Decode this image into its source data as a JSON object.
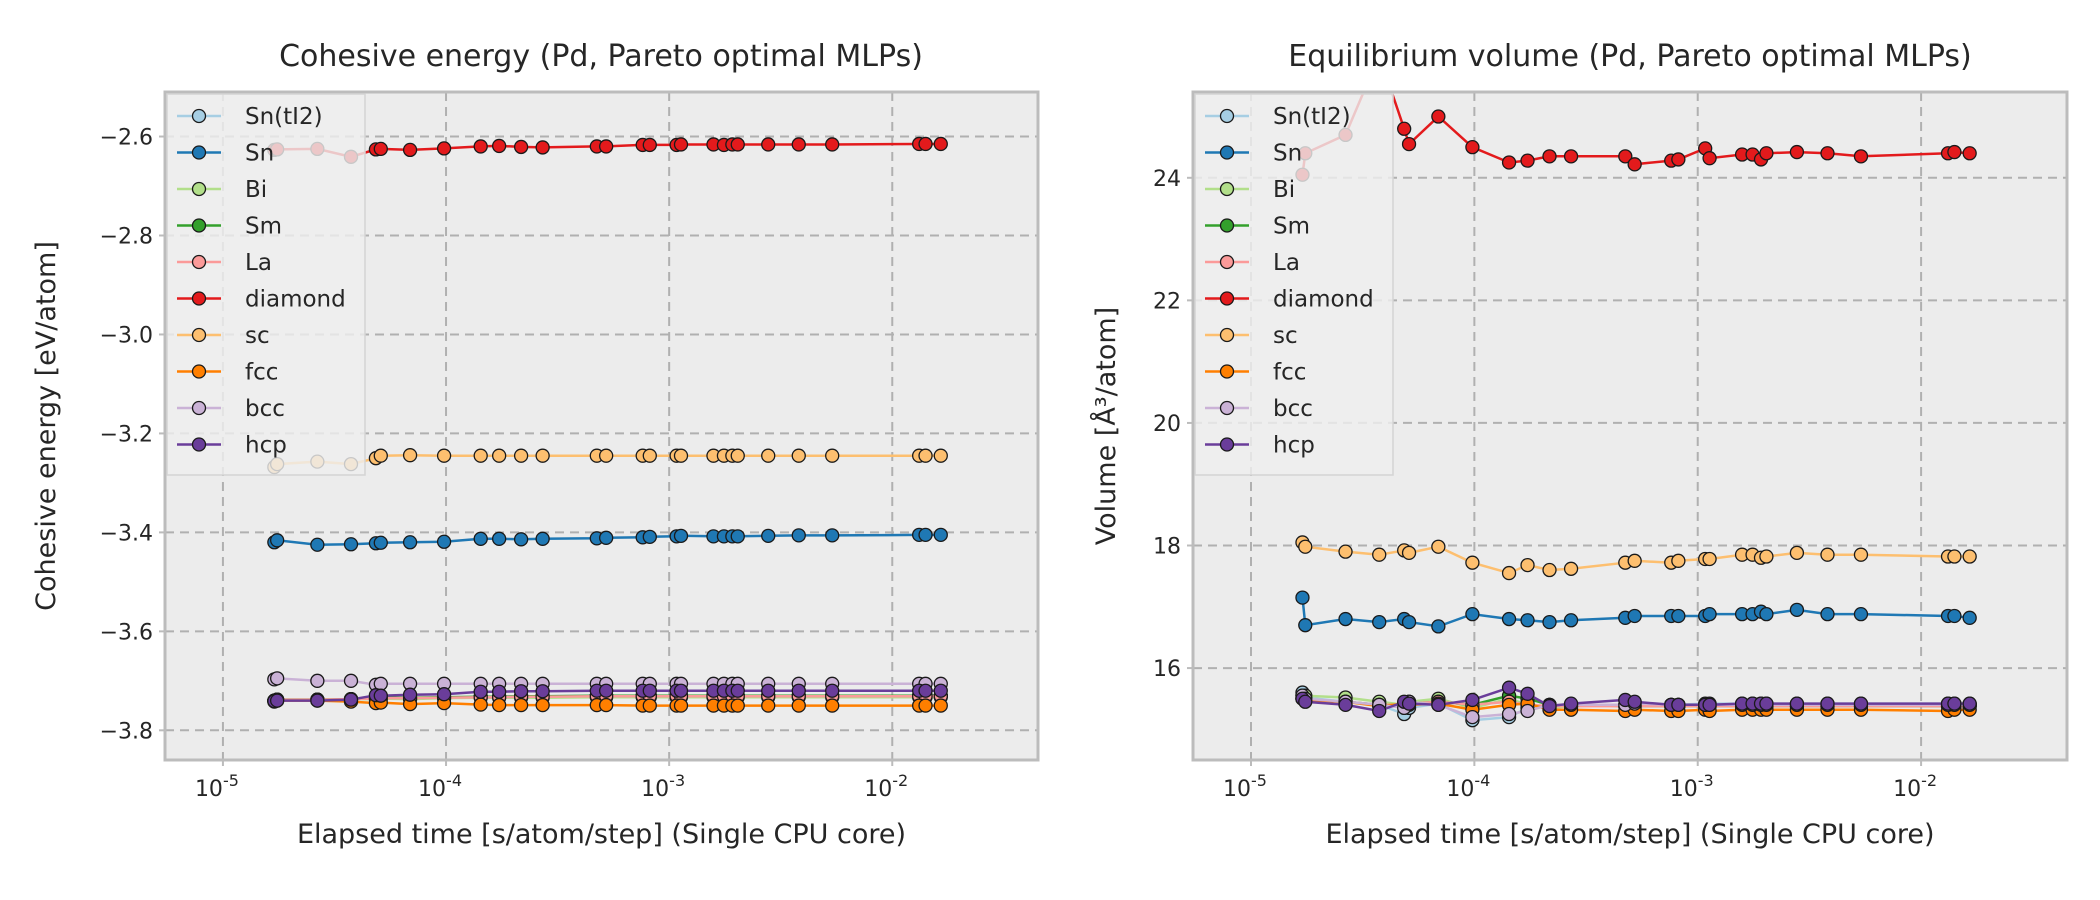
{
  "x_tick_labels": [
    {
      "base": "10",
      "exp": "-5",
      "value": 1e-05
    },
    {
      "base": "10",
      "exp": "-4",
      "value": 0.0001
    },
    {
      "base": "10",
      "exp": "-3",
      "value": 0.001
    },
    {
      "base": "10",
      "exp": "-2",
      "value": 0.01
    }
  ],
  "colors": {
    "axes_bg": "#ececec",
    "grid": "#b0b0b0",
    "spine": "#bcbcbc",
    "text": "#262626"
  },
  "series_style": [
    {
      "name": "Sn(tI2)",
      "color": "#a6cee3"
    },
    {
      "name": "Sn",
      "color": "#1f78b4"
    },
    {
      "name": "Bi",
      "color": "#b2df8a"
    },
    {
      "name": "Sm",
      "color": "#33a02c"
    },
    {
      "name": "La",
      "color": "#fb9a99"
    },
    {
      "name": "diamond",
      "color": "#e31a1c"
    },
    {
      "name": "sc",
      "color": "#fdbf6f"
    },
    {
      "name": "fcc",
      "color": "#ff7f00"
    },
    {
      "name": "bcc",
      "color": "#cab2d6"
    },
    {
      "name": "hcp",
      "color": "#6a3d9a"
    }
  ],
  "chart_data": [
    {
      "type": "line",
      "title": "Cohesive energy (Pd, Pareto optimal MLPs)",
      "xlabel": "Elapsed time [s/atom/step] (Single CPU core)",
      "ylabel": "Cohesive energy [eV/atom]",
      "xscale": "log",
      "xlim": [
        5.5e-06,
        0.045
      ],
      "ylim": [
        -3.86,
        -2.51
      ],
      "yticks": [
        -3.8,
        -3.6,
        -3.4,
        -3.2,
        -3.0,
        -2.8,
        -2.6
      ],
      "ytick_labels": [
        "−3.8",
        "−3.6",
        "−3.4",
        "−3.2",
        "−3.0",
        "−2.8",
        "−2.6"
      ],
      "grid": true,
      "legend_position": "top-left",
      "x": [
        1.7e-05,
        1.75e-05,
        2.65e-05,
        3.75e-05,
        4.85e-05,
        5.1e-05,
        6.9e-05,
        9.8e-05,
        0.000143,
        0.000173,
        0.000217,
        0.000271,
        0.000474,
        0.000522,
        0.000761,
        0.000819,
        0.00108,
        0.00113,
        0.00158,
        0.00176,
        0.00192,
        0.00203,
        0.00278,
        0.00381,
        0.00538,
        0.0132,
        0.0141,
        0.0165
      ],
      "series": [
        {
          "name": "Sn(tI2)",
          "values": [
            -3.74,
            -3.738,
            -3.738,
            -3.737,
            -3.736,
            -3.735,
            -3.735,
            -3.735,
            -3.732,
            -3.732,
            -3.731,
            -3.731,
            -3.73,
            -3.73,
            -3.73,
            -3.73,
            -3.73,
            -3.73,
            -3.73,
            -3.73,
            -3.73,
            -3.73,
            -3.73,
            -3.73,
            -3.73,
            -3.73,
            -3.73,
            -3.73
          ]
        },
        {
          "name": "Sn",
          "values": [
            -3.42,
            -3.416,
            -3.425,
            -3.424,
            -3.422,
            -3.421,
            -3.42,
            -3.419,
            -3.413,
            -3.413,
            -3.414,
            -3.413,
            -3.412,
            -3.411,
            -3.41,
            -3.409,
            -3.408,
            -3.407,
            -3.408,
            -3.408,
            -3.408,
            -3.408,
            -3.407,
            -3.406,
            -3.406,
            -3.405,
            -3.405,
            -3.405
          ]
        },
        {
          "name": "Bi",
          "values": [
            -3.74,
            -3.738,
            -3.738,
            -3.737,
            -3.737,
            -3.736,
            -3.737,
            -3.735,
            -3.734,
            -3.734,
            -3.734,
            -3.734,
            -3.733,
            -3.733,
            -3.733,
            -3.733,
            -3.733,
            -3.733,
            -3.733,
            -3.733,
            -3.733,
            -3.733,
            -3.733,
            -3.733,
            -3.733,
            -3.733,
            -3.733,
            -3.733
          ]
        },
        {
          "name": "Sm",
          "values": [
            -3.74,
            -3.738,
            -3.738,
            -3.737,
            -3.735,
            -3.734,
            -3.734,
            -3.733,
            -3.732,
            -3.732,
            -3.731,
            -3.731,
            -3.73,
            -3.73,
            -3.73,
            -3.73,
            -3.73,
            -3.73,
            -3.73,
            -3.73,
            -3.73,
            -3.73,
            -3.73,
            -3.73,
            -3.73,
            -3.73,
            -3.73,
            -3.73
          ]
        },
        {
          "name": "La",
          "values": [
            -3.74,
            -3.738,
            -3.738,
            -3.737,
            -3.736,
            -3.735,
            -3.735,
            -3.734,
            -3.733,
            -3.733,
            -3.732,
            -3.732,
            -3.731,
            -3.731,
            -3.731,
            -3.731,
            -3.731,
            -3.731,
            -3.731,
            -3.731,
            -3.731,
            -3.731,
            -3.731,
            -3.731,
            -3.731,
            -3.731,
            -3.731,
            -3.731
          ]
        },
        {
          "name": "diamond",
          "values": [
            -2.627,
            -2.626,
            -2.625,
            -2.641,
            -2.626,
            -2.625,
            -2.627,
            -2.624,
            -2.62,
            -2.619,
            -2.621,
            -2.622,
            -2.62,
            -2.62,
            -2.617,
            -2.617,
            -2.617,
            -2.616,
            -2.616,
            -2.617,
            -2.616,
            -2.616,
            -2.616,
            -2.616,
            -2.616,
            -2.615,
            -2.615,
            -2.615
          ]
        },
        {
          "name": "sc",
          "values": [
            -3.268,
            -3.262,
            -3.257,
            -3.262,
            -3.25,
            -3.245,
            -3.244,
            -3.245,
            -3.245,
            -3.245,
            -3.245,
            -3.245,
            -3.245,
            -3.245,
            -3.245,
            -3.245,
            -3.245,
            -3.245,
            -3.245,
            -3.245,
            -3.245,
            -3.245,
            -3.245,
            -3.245,
            -3.245,
            -3.245,
            -3.245,
            -3.245
          ]
        },
        {
          "name": "fcc",
          "values": [
            -3.742,
            -3.74,
            -3.74,
            -3.742,
            -3.745,
            -3.744,
            -3.747,
            -3.745,
            -3.748,
            -3.749,
            -3.749,
            -3.749,
            -3.749,
            -3.749,
            -3.75,
            -3.75,
            -3.75,
            -3.75,
            -3.75,
            -3.75,
            -3.75,
            -3.75,
            -3.75,
            -3.75,
            -3.75,
            -3.75,
            -3.75,
            -3.75
          ]
        },
        {
          "name": "bcc",
          "values": [
            -3.697,
            -3.695,
            -3.7,
            -3.7,
            -3.708,
            -3.706,
            -3.706,
            -3.706,
            -3.706,
            -3.706,
            -3.706,
            -3.706,
            -3.706,
            -3.706,
            -3.706,
            -3.706,
            -3.706,
            -3.706,
            -3.706,
            -3.706,
            -3.706,
            -3.706,
            -3.706,
            -3.706,
            -3.706,
            -3.706,
            -3.706,
            -3.706
          ]
        },
        {
          "name": "hcp",
          "values": [
            -3.741,
            -3.74,
            -3.74,
            -3.738,
            -3.729,
            -3.73,
            -3.728,
            -3.727,
            -3.722,
            -3.722,
            -3.721,
            -3.721,
            -3.72,
            -3.72,
            -3.72,
            -3.72,
            -3.72,
            -3.72,
            -3.72,
            -3.72,
            -3.72,
            -3.72,
            -3.72,
            -3.72,
            -3.72,
            -3.72,
            -3.72,
            -3.72
          ]
        }
      ]
    },
    {
      "type": "line",
      "title": "Equilibrium volume (Pd, Pareto optimal MLPs)",
      "xlabel": "Elapsed time [s/atom/step] (Single CPU core)",
      "ylabel": "Volume [Å³/atom]",
      "xscale": "log",
      "xlim": [
        5.5e-06,
        0.045
      ],
      "ylim": [
        14.5,
        25.4
      ],
      "yticks": [
        16,
        18,
        20,
        22,
        24
      ],
      "ytick_labels": [
        "16",
        "18",
        "20",
        "22",
        "24"
      ],
      "grid": true,
      "legend_position": "top-left",
      "x": [
        1.7e-05,
        1.75e-05,
        2.65e-05,
        3.75e-05,
        4.85e-05,
        5.1e-05,
        6.9e-05,
        9.8e-05,
        0.000143,
        0.000173,
        0.000217,
        0.000271,
        0.000474,
        0.000522,
        0.000761,
        0.000819,
        0.00108,
        0.00113,
        0.00158,
        0.00176,
        0.00192,
        0.00203,
        0.00278,
        0.00381,
        0.00538,
        0.0132,
        0.0141,
        0.0165
      ],
      "series": [
        {
          "name": "Sn(tI2)",
          "values": [
            15.6,
            15.52,
            15.45,
            15.4,
            15.25,
            15.35,
            15.42,
            15.15,
            15.2,
            15.35,
            15.4,
            15.38,
            15.4,
            15.4,
            15.4,
            15.4,
            15.42,
            15.42,
            15.42,
            15.42,
            15.42,
            15.42,
            15.42,
            15.42,
            15.42,
            15.42,
            15.42,
            15.42
          ]
        },
        {
          "name": "Sn",
          "values": [
            17.15,
            16.7,
            16.8,
            16.75,
            16.8,
            16.75,
            16.68,
            16.88,
            16.8,
            16.78,
            16.75,
            16.78,
            16.82,
            16.85,
            16.85,
            16.85,
            16.85,
            16.88,
            16.88,
            16.88,
            16.92,
            16.88,
            16.95,
            16.88,
            16.88,
            16.85,
            16.85,
            16.82
          ]
        },
        {
          "name": "Bi",
          "values": [
            15.55,
            15.55,
            15.52,
            15.45,
            15.4,
            15.45,
            15.5,
            15.35,
            15.5,
            15.4,
            15.35,
            15.38,
            15.4,
            15.4,
            15.4,
            15.4,
            15.4,
            15.4,
            15.4,
            15.4,
            15.4,
            15.4,
            15.4,
            15.4,
            15.4,
            15.4,
            15.4,
            15.4
          ]
        },
        {
          "name": "Sm",
          "values": [
            15.5,
            15.48,
            15.45,
            15.4,
            15.4,
            15.42,
            15.45,
            15.4,
            15.55,
            15.5,
            15.4,
            15.4,
            15.38,
            15.38,
            15.38,
            15.38,
            15.38,
            15.38,
            15.38,
            15.38,
            15.38,
            15.38,
            15.38,
            15.38,
            15.38,
            15.38,
            15.38,
            15.38
          ]
        },
        {
          "name": "La",
          "values": [
            15.5,
            15.48,
            15.45,
            15.4,
            15.4,
            15.42,
            15.45,
            15.4,
            15.45,
            15.4,
            15.38,
            15.38,
            15.38,
            15.38,
            15.38,
            15.38,
            15.38,
            15.38,
            15.38,
            15.38,
            15.38,
            15.38,
            15.38,
            15.38,
            15.38,
            15.38,
            15.38,
            15.38
          ]
        },
        {
          "name": "diamond",
          "values": [
            24.05,
            24.4,
            24.7,
            26.0,
            24.8,
            24.55,
            25.0,
            24.5,
            24.25,
            24.28,
            24.35,
            24.35,
            24.35,
            24.22,
            24.28,
            24.3,
            24.48,
            24.32,
            24.38,
            24.38,
            24.3,
            24.4,
            24.42,
            24.4,
            24.35,
            24.4,
            24.42,
            24.4
          ]
        },
        {
          "name": "sc",
          "values": [
            18.05,
            17.98,
            17.9,
            17.85,
            17.92,
            17.88,
            17.98,
            17.72,
            17.55,
            17.68,
            17.6,
            17.62,
            17.72,
            17.75,
            17.72,
            17.75,
            17.78,
            17.78,
            17.85,
            17.85,
            17.8,
            17.82,
            17.88,
            17.85,
            17.85,
            17.82,
            17.82,
            17.82
          ]
        },
        {
          "name": "fcc",
          "values": [
            15.5,
            15.48,
            15.45,
            15.38,
            15.42,
            15.4,
            15.42,
            15.32,
            15.4,
            15.42,
            15.32,
            15.32,
            15.3,
            15.32,
            15.3,
            15.3,
            15.32,
            15.3,
            15.32,
            15.32,
            15.32,
            15.32,
            15.32,
            15.32,
            15.32,
            15.3,
            15.32,
            15.32
          ]
        },
        {
          "name": "bcc",
          "values": [
            15.55,
            15.5,
            15.45,
            15.4,
            15.35,
            15.45,
            15.4,
            15.2,
            15.25,
            15.3,
            15.4,
            15.4,
            15.4,
            15.42,
            15.4,
            15.4,
            15.4,
            15.4,
            15.4,
            15.4,
            15.4,
            15.4,
            15.4,
            15.4,
            15.4,
            15.4,
            15.4,
            15.4
          ]
        },
        {
          "name": "hcp",
          "values": [
            15.5,
            15.45,
            15.4,
            15.3,
            15.45,
            15.42,
            15.4,
            15.48,
            15.68,
            15.58,
            15.38,
            15.42,
            15.48,
            15.45,
            15.4,
            15.4,
            15.4,
            15.4,
            15.42,
            15.42,
            15.42,
            15.42,
            15.42,
            15.42,
            15.42,
            15.42,
            15.42,
            15.42
          ]
        }
      ]
    }
  ]
}
